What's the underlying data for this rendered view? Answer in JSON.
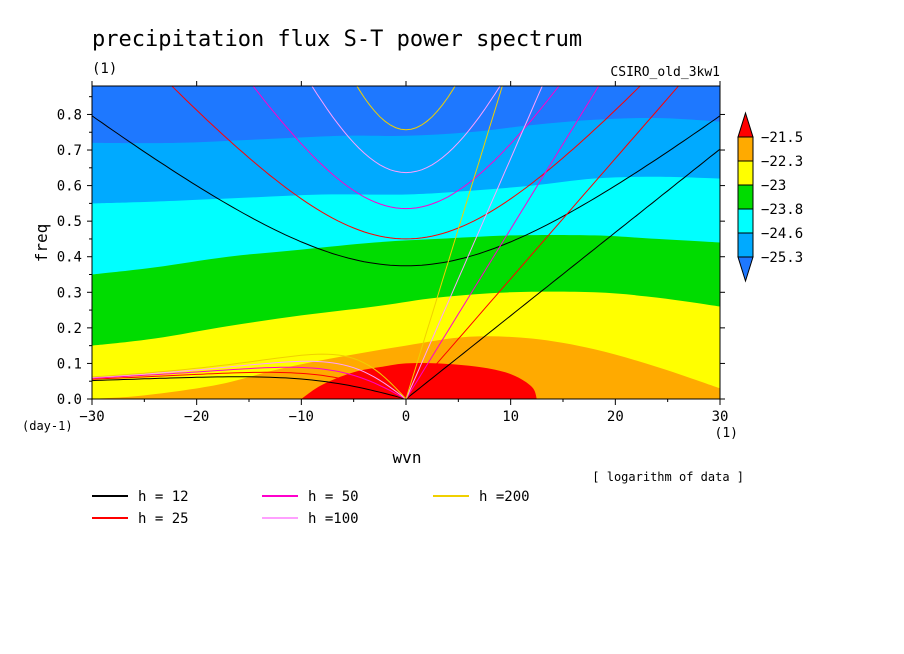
{
  "chart_data": {
    "type": "heatmap",
    "title": "precipitation flux S-T power spectrum",
    "title_units": "(1)",
    "model_label": "CSIRO_old_3kw1",
    "xlabel": "wvn",
    "x_units": "(1)",
    "ylabel": "freq",
    "y_units": "(day-1)",
    "xlim": [
      -30,
      30
    ],
    "ylim": [
      0.0,
      0.88
    ],
    "xticks": [
      -30,
      -20,
      -10,
      0,
      10,
      20,
      30
    ],
    "yticks": [
      0.0,
      0.1,
      0.2,
      0.3,
      0.4,
      0.5,
      0.6,
      0.7,
      0.8
    ],
    "note": "[ logarithm of data ]",
    "colorbar": {
      "levels": [
        -25.3,
        -24.6,
        -23.8,
        -23,
        -22.3,
        -21.5
      ],
      "labels": [
        "-21.5",
        "-22.3",
        "-23",
        "-23.8",
        "-24.6",
        "-25.3"
      ],
      "colors": [
        "#1e78ff",
        "#00aaff",
        "#00ffff",
        "#00dc00",
        "#ffff00",
        "#ffaa00",
        "#ff0000"
      ]
    },
    "contour_bands": [
      {
        "level": "-21.5",
        "color": "#ff0000",
        "boundary": [
          [
            -10,
            0
          ],
          [
            -8,
            0.04
          ],
          [
            -5,
            0.075
          ],
          [
            -2,
            0.092
          ],
          [
            0,
            0.1
          ],
          [
            3,
            0.1
          ],
          [
            7,
            0.09
          ],
          [
            10,
            0.07
          ],
          [
            12,
            0.035
          ],
          [
            12.5,
            0
          ]
        ]
      },
      {
        "level": "-22.3",
        "color": "#ffaa00",
        "boundary": [
          [
            -30,
            0
          ],
          [
            -25,
            0.01
          ],
          [
            -18,
            0.04
          ],
          [
            -12,
            0.085
          ],
          [
            -6,
            0.12
          ],
          [
            0,
            0.15
          ],
          [
            6,
            0.175
          ],
          [
            12,
            0.17
          ],
          [
            18,
            0.14
          ],
          [
            24,
            0.09
          ],
          [
            30,
            0.03
          ]
        ]
      },
      {
        "level": "-23",
        "color": "#ffff00",
        "boundary": [
          [
            -30,
            0.15
          ],
          [
            -24,
            0.17
          ],
          [
            -17,
            0.205
          ],
          [
            -10,
            0.235
          ],
          [
            -3,
            0.26
          ],
          [
            3,
            0.285
          ],
          [
            10,
            0.3
          ],
          [
            18,
            0.3
          ],
          [
            24,
            0.285
          ],
          [
            30,
            0.26
          ]
        ]
      },
      {
        "level": "-23.8",
        "color": "#00dc00",
        "boundary": [
          [
            -30,
            0.35
          ],
          [
            -24,
            0.37
          ],
          [
            -17,
            0.4
          ],
          [
            -10,
            0.42
          ],
          [
            -3,
            0.44
          ],
          [
            3,
            0.45
          ],
          [
            10,
            0.46
          ],
          [
            18,
            0.46
          ],
          [
            24,
            0.45
          ],
          [
            30,
            0.44
          ]
        ]
      },
      {
        "level": "-24.6",
        "color": "#00ffff",
        "boundary": [
          [
            -30,
            0.55
          ],
          [
            -24,
            0.555
          ],
          [
            -16,
            0.565
          ],
          [
            -8,
            0.575
          ],
          [
            0,
            0.575
          ],
          [
            6,
            0.585
          ],
          [
            12,
            0.6
          ],
          [
            18,
            0.62
          ],
          [
            24,
            0.625
          ],
          [
            30,
            0.62
          ]
        ]
      },
      {
        "level": "-25.3",
        "color": "#00aaff",
        "boundary": [
          [
            -30,
            0.72
          ],
          [
            -22,
            0.72
          ],
          [
            -14,
            0.73
          ],
          [
            -6,
            0.74
          ],
          [
            0,
            0.74
          ],
          [
            6,
            0.75
          ],
          [
            12,
            0.77
          ],
          [
            18,
            0.785
          ],
          [
            24,
            0.79
          ],
          [
            30,
            0.78
          ]
        ]
      }
    ],
    "dispersion_curves": [
      {
        "name": "h = 12",
        "h": 12,
        "color": "#000000"
      },
      {
        "name": "h = 25",
        "h": 25,
        "color": "#ff0000"
      },
      {
        "name": "h = 50",
        "h": 50,
        "color": "#ff00cc"
      },
      {
        "name": "h =100",
        "h": 100,
        "color": "#ffa0ff"
      },
      {
        "name": "h =200",
        "h": 200,
        "color": "#f0d000"
      }
    ]
  }
}
